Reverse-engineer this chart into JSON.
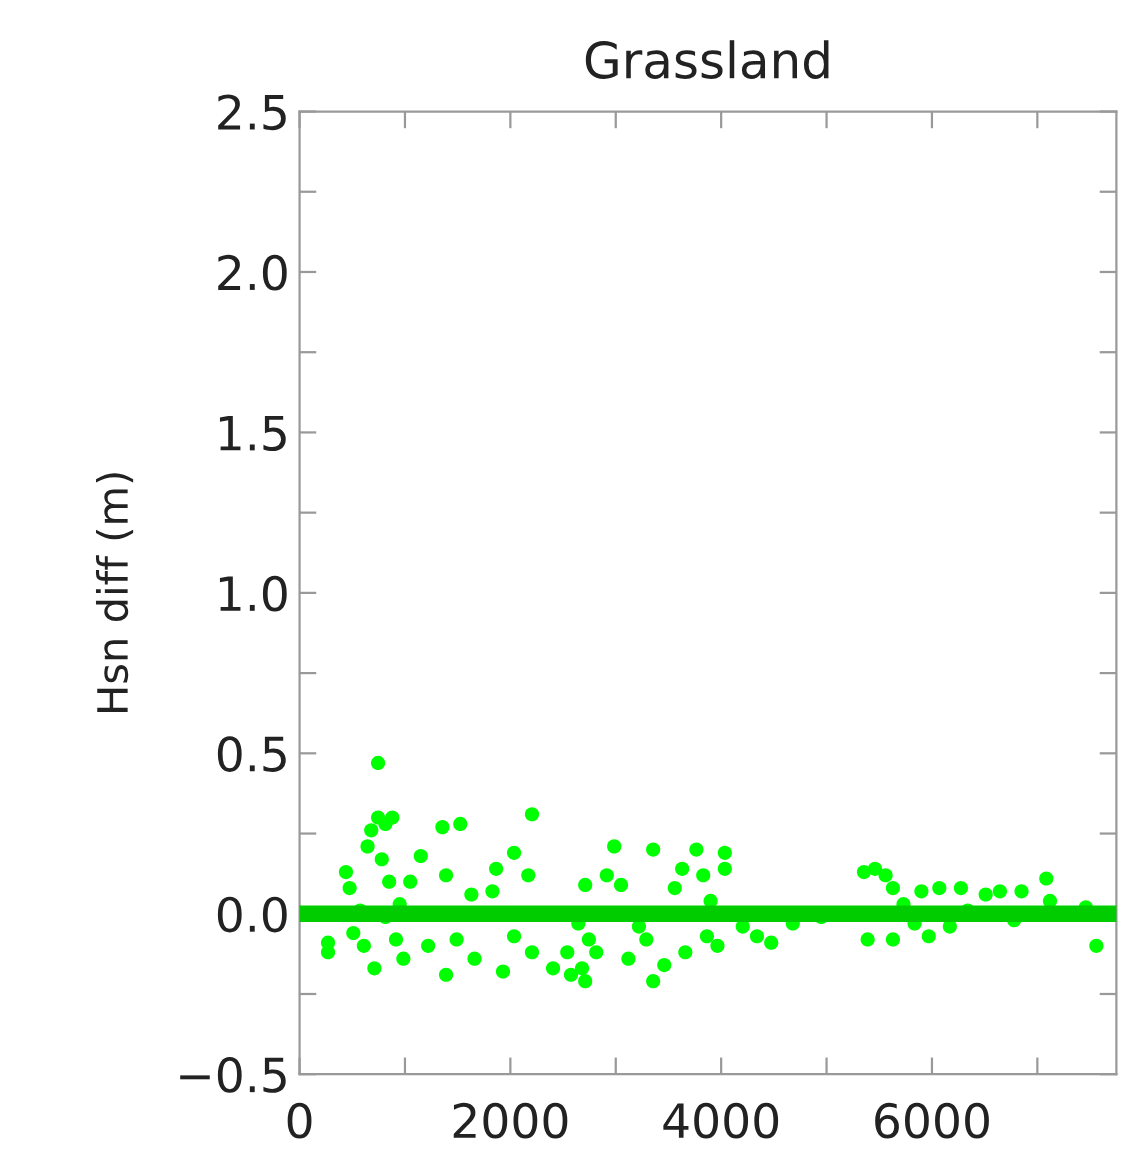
{
  "chart_data": {
    "type": "scatter",
    "title": "Grassland",
    "ylabel": "Hsn diff (m)",
    "xlim": [
      0,
      7750
    ],
    "ylim": [
      -0.5,
      2.5
    ],
    "xticks": [
      0,
      {
        "value": 1000,
        "label": null
      },
      2000,
      {
        "value": 3000,
        "label": null
      },
      4000,
      {
        "value": 5000,
        "label": null
      },
      6000,
      {
        "value": 7000,
        "label": null
      }
    ],
    "yticks": [
      -0.5,
      {
        "value": -0.25,
        "label": null
      },
      "0.0",
      {
        "value": 0.25,
        "label": null
      },
      0.5,
      {
        "value": 0.75,
        "label": null
      },
      "1.0",
      {
        "value": 1.25,
        "label": null
      },
      1.5,
      {
        "value": 1.75,
        "label": null
      },
      "2.0",
      {
        "value": 2.25,
        "label": null
      },
      2.5
    ],
    "marker": "circle",
    "grid": false,
    "legend": false,
    "ref_lines": [
      {
        "axis": "y",
        "value": 0,
        "color": "#00cc00",
        "line_style": "solid"
      }
    ],
    "series": [
      {
        "color": "#00ff00",
        "x": [
          270,
          270,
          440,
          475,
          510,
          610,
          645,
          680,
          710,
          745,
          745,
          780,
          815,
          850,
          880,
          915,
          950,
          815,
          575,
          985,
          1050,
          1150,
          1220,
          1355,
          1390,
          1390,
          1525,
          1490,
          1630,
          1660,
          1830,
          1865,
          1930,
          2035,
          2170,
          2205,
          2205,
          2035,
          2405,
          2540,
          2575,
          2680,
          2710,
          2745,
          2645,
          2710,
          2815,
          2915,
          2985,
          3050,
          3120,
          3220,
          3290,
          3355,
          3355,
          3460,
          3560,
          3630,
          3660,
          3765,
          3830,
          3865,
          3900,
          4035,
          4035,
          3965,
          4205,
          4340,
          4475,
          4680,
          4950,
          5355,
          5390,
          5460,
          5560,
          5630,
          5630,
          5730,
          5835,
          5900,
          5970,
          6070,
          6170,
          6275,
          6340,
          6510,
          6645,
          6780,
          6850,
          7085,
          7120,
          7460,
          7560
        ],
        "values": [
          -0.12,
          -0.09,
          0.13,
          0.08,
          -0.06,
          -0.1,
          0.21,
          0.26,
          -0.17,
          0.47,
          0.3,
          0.17,
          0.28,
          0.1,
          0.3,
          -0.08,
          0.03,
          -0.01,
          0.01,
          -0.14,
          0.1,
          0.18,
          -0.1,
          0.27,
          -0.19,
          0.12,
          0.28,
          -0.08,
          0.06,
          -0.14,
          0.07,
          0.14,
          -0.18,
          0.19,
          0.12,
          0.31,
          -0.12,
          -0.07,
          -0.17,
          -0.12,
          -0.19,
          -0.17,
          -0.21,
          -0.08,
          -0.03,
          0.09,
          -0.12,
          0.12,
          0.21,
          0.09,
          -0.14,
          -0.04,
          -0.08,
          0.2,
          -0.21,
          -0.16,
          0.08,
          0.14,
          -0.12,
          0.2,
          0.12,
          -0.07,
          0.04,
          0.19,
          0.14,
          -0.1,
          -0.04,
          -0.07,
          -0.09,
          -0.03,
          -0.01,
          0.13,
          -0.08,
          0.14,
          0.12,
          -0.08,
          0.08,
          0.03,
          -0.03,
          0.07,
          -0.07,
          0.08,
          -0.04,
          0.08,
          0.01,
          0.06,
          0.07,
          -0.02,
          0.07,
          0.11,
          0.04,
          0.02,
          -0.1
        ]
      }
    ]
  }
}
